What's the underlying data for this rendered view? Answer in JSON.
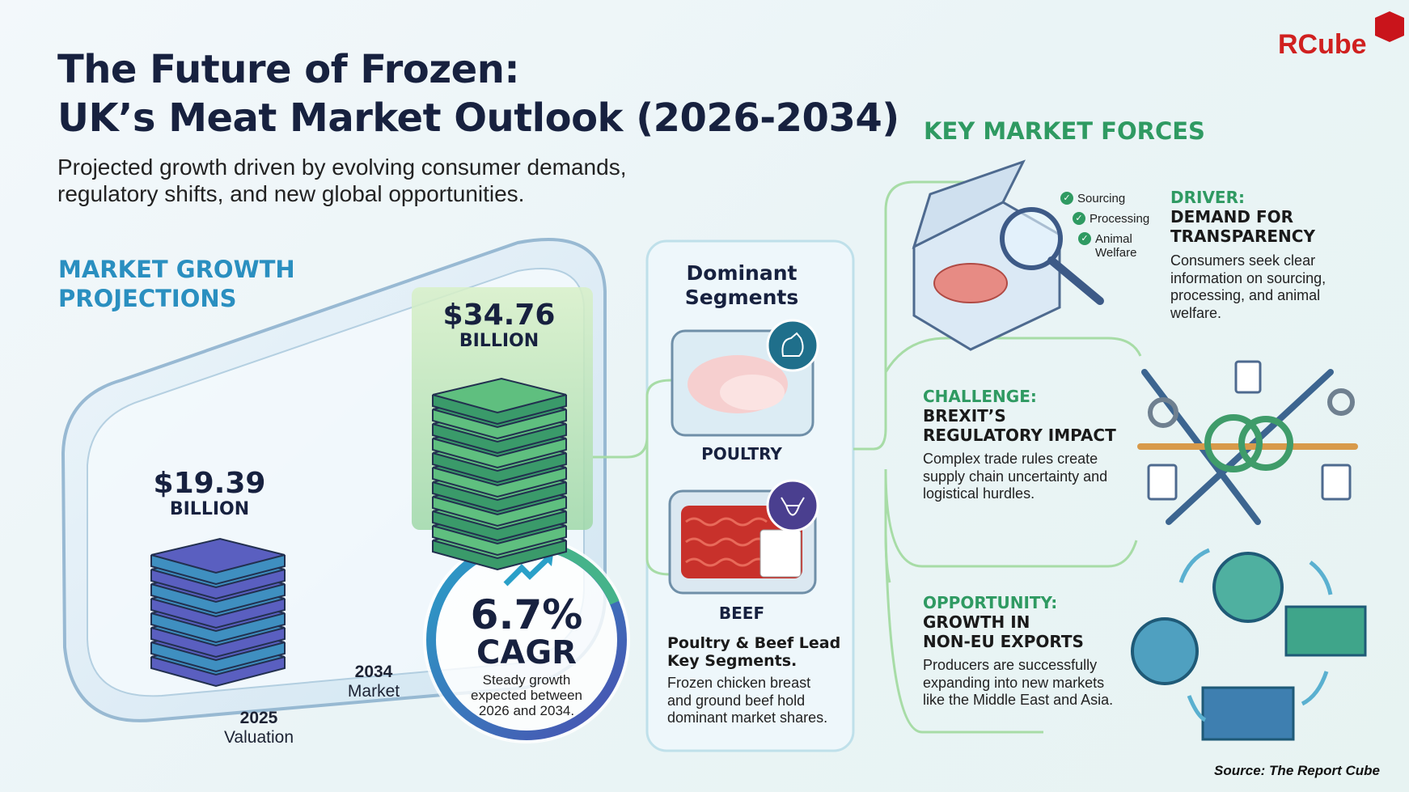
{
  "title": {
    "line1": "The Future of Frozen:",
    "line2": "UK’s Meat Market Outlook (2026-2034)"
  },
  "subtitle": {
    "line1": "Projected growth driven by evolving consumer demands,",
    "line2": "regulatory shifts, and new global opportunities."
  },
  "logo": {
    "text": "RCube"
  },
  "growth": {
    "heading1": "MARKET GROWTH",
    "heading2": "PROJECTIONS",
    "v2025": {
      "value": "$19.39",
      "unit": "BILLION",
      "label1": "2025",
      "label2": "Valuation"
    },
    "v2034": {
      "value": "$34.76",
      "unit": "BILLION",
      "label1": "2034",
      "label2": "Market"
    },
    "cagr": {
      "value": "6.7%",
      "label": "CAGR",
      "desc1": "Steady growth",
      "desc2": "expected between",
      "desc3": "2026 and 2034."
    }
  },
  "segments": {
    "heading1": "Dominant",
    "heading2": "Segments",
    "poultry": "POULTRY",
    "beef": "BEEF",
    "lead1": "Poultry & Beef Lead",
    "lead2": "Key Segments.",
    "desc1": "Frozen chicken breast",
    "desc2": "and ground beef hold",
    "desc3": "dominant market shares."
  },
  "forces": {
    "heading": "KEY MARKET FORCES",
    "checklist": [
      "Sourcing",
      "Processing",
      "Animal",
      "Welfare"
    ],
    "driver": {
      "tag": "DRIVER:",
      "title1": "DEMAND FOR",
      "title2": "TRANSPARENCY",
      "body1": "Consumers seek clear",
      "body2": "information on sourcing,",
      "body3": "processing, and animal",
      "body4": "welfare."
    },
    "challenge": {
      "tag": "CHALLENGE:",
      "title1": "BREXIT’S",
      "title2": "REGULATORY IMPACT",
      "body1": "Complex trade rules create",
      "body2": "supply chain uncertainty and",
      "body3": "logistical hurdles."
    },
    "opportunity": {
      "tag": "OPPORTUNITY:",
      "title1": "GROWTH IN",
      "title2": "NON-EU EXPORTS",
      "body1": "Producers are successfully",
      "body2": "expanding into new markets",
      "body3": "like the Middle East and Asia."
    }
  },
  "source": "Source: The Report Cube",
  "colors": {
    "navy": "#17213f",
    "blue": "#2a8fc0",
    "green": "#2f9a62",
    "red": "#d0201f"
  }
}
